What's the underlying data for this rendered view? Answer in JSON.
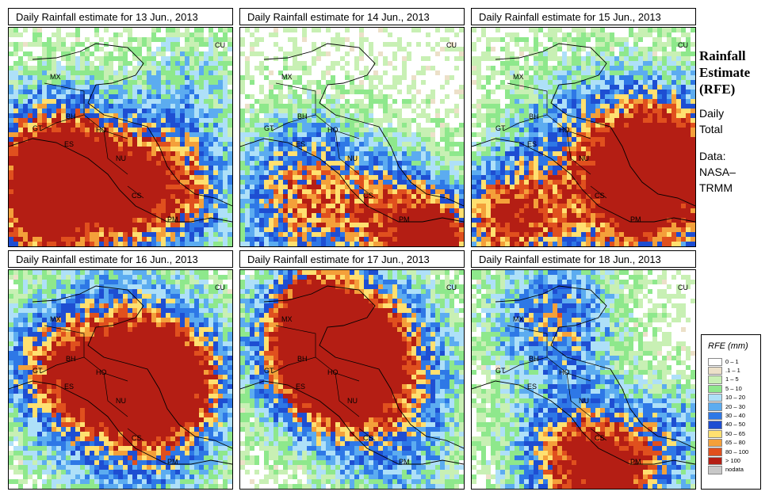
{
  "panels": [
    {
      "title": "Daily Rainfall estimate for  13 Jun., 2013",
      "intensity": "high-nicaragua"
    },
    {
      "title": "Daily Rainfall estimate for  14 Jun., 2013",
      "intensity": "moderate"
    },
    {
      "title": "Daily Rainfall estimate for  15 Jun., 2013",
      "intensity": "high-south"
    },
    {
      "title": "Daily Rainfall estimate for  16 Jun., 2013",
      "intensity": "high-honduras"
    },
    {
      "title": "Daily Rainfall estimate for  17 Jun., 2013",
      "intensity": "high-north"
    },
    {
      "title": "Daily Rainfall estimate for  18 Jun., 2013",
      "intensity": "moderate-south"
    }
  ],
  "country_labels": [
    "MX",
    "BH",
    "GT",
    "HO",
    "ES",
    "NU",
    "CS",
    "PM",
    "CU"
  ],
  "sidebar": {
    "title_line1": "Rainfall",
    "title_line2": "Estimate",
    "title_line3": "(RFE)",
    "daily_line1": "Daily",
    "daily_line2": "Total",
    "data_line1": "Data:",
    "data_line2": "NASA–",
    "data_line3": "TRMM"
  },
  "legend": {
    "title": "RFE (mm)",
    "entries": [
      {
        "label": "0 – 1",
        "color": "#ffffff"
      },
      {
        "label": ".1 – 1",
        "color": "#ece0c8"
      },
      {
        "label": "1 – 5",
        "color": "#c8f0b4"
      },
      {
        "label": "5 – 10",
        "color": "#8ee88c"
      },
      {
        "label": "10 – 20",
        "color": "#aee0f8"
      },
      {
        "label": "20 – 30",
        "color": "#5cacf0"
      },
      {
        "label": "30 – 40",
        "color": "#2e78e6"
      },
      {
        "label": "40 – 50",
        "color": "#1e4ed2"
      },
      {
        "label": "50 – 65",
        "color": "#ffe070"
      },
      {
        "label": "65 – 80",
        "color": "#f4a03a"
      },
      {
        "label": "80 – 100",
        "color": "#e0501e"
      },
      {
        "label": "> 100",
        "color": "#b41e14"
      },
      {
        "label": "nodata",
        "color": "#c8c8c8"
      }
    ]
  }
}
